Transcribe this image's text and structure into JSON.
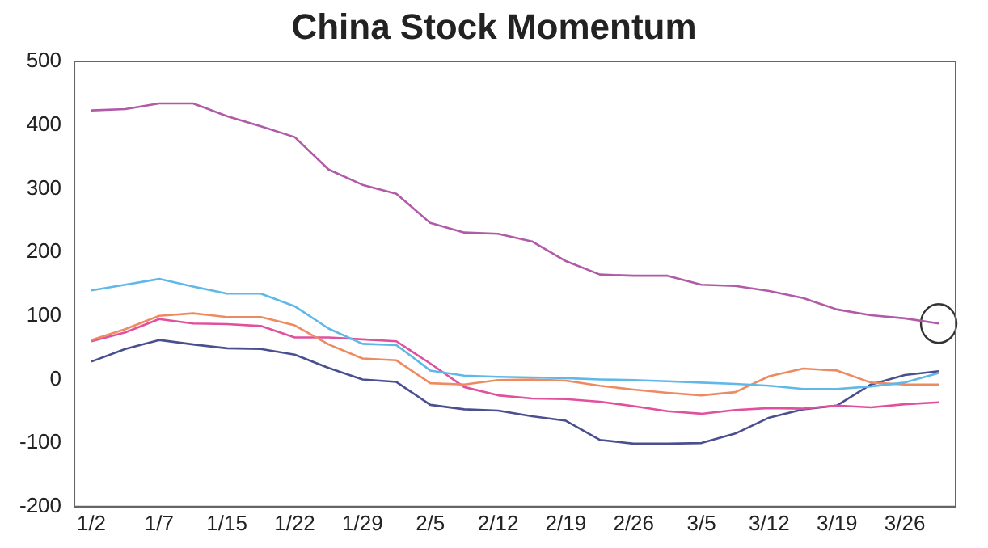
{
  "chart_data": {
    "type": "line",
    "title": "China Stock Momentum",
    "categories": [
      "1/2",
      null,
      "1/7",
      null,
      "1/15",
      null,
      "1/22",
      null,
      "1/29",
      null,
      "2/5",
      null,
      "2/12",
      null,
      "2/19",
      null,
      "2/26",
      null,
      "3/5",
      null,
      "3/12",
      null,
      "3/19",
      null,
      "3/26",
      null
    ],
    "series": [
      {
        "color": "#b05aa8",
        "values": [
          423,
          425,
          434,
          434,
          414,
          398,
          381,
          330,
          306,
          292,
          246,
          231,
          229,
          217,
          186,
          165,
          163,
          163,
          149,
          147,
          139,
          128,
          110,
          101,
          96,
          88
        ]
      },
      {
        "color": "#5fb8e8",
        "values": [
          140,
          149,
          158,
          146,
          135,
          135,
          115,
          80,
          56,
          54,
          14,
          6,
          4,
          3,
          2,
          0,
          -1,
          -3,
          -5,
          -7,
          -10,
          -15,
          -15,
          -11,
          -5,
          10
        ]
      },
      {
        "color": "#ee8a60",
        "values": [
          62,
          79,
          100,
          104,
          98,
          98,
          85,
          55,
          33,
          30,
          -6,
          -8,
          -1,
          0,
          -2,
          -10,
          -16,
          -21,
          -25,
          -20,
          5,
          17,
          14,
          -5,
          -8,
          -8
        ]
      },
      {
        "color": "#e0509e",
        "values": [
          60,
          74,
          95,
          88,
          87,
          84,
          66,
          66,
          63,
          60,
          25,
          -12,
          -25,
          -30,
          -31,
          -35,
          -42,
          -50,
          -54,
          -48,
          -45,
          -46,
          -41,
          -44,
          -39,
          -36
        ]
      },
      {
        "color": "#4a4f8f",
        "values": [
          28,
          48,
          62,
          55,
          49,
          48,
          39,
          18,
          0,
          -4,
          -40,
          -47,
          -49,
          -58,
          -65,
          -95,
          -101,
          -101,
          -100,
          -85,
          -60,
          -47,
          -41,
          -8,
          7,
          13
        ]
      }
    ],
    "ylim": [
      -200,
      500
    ],
    "yticks": [
      -200,
      -100,
      0,
      100,
      200,
      300,
      400,
      500
    ],
    "grid": false,
    "legend": false,
    "marker": "none",
    "line_style": "solid"
  }
}
